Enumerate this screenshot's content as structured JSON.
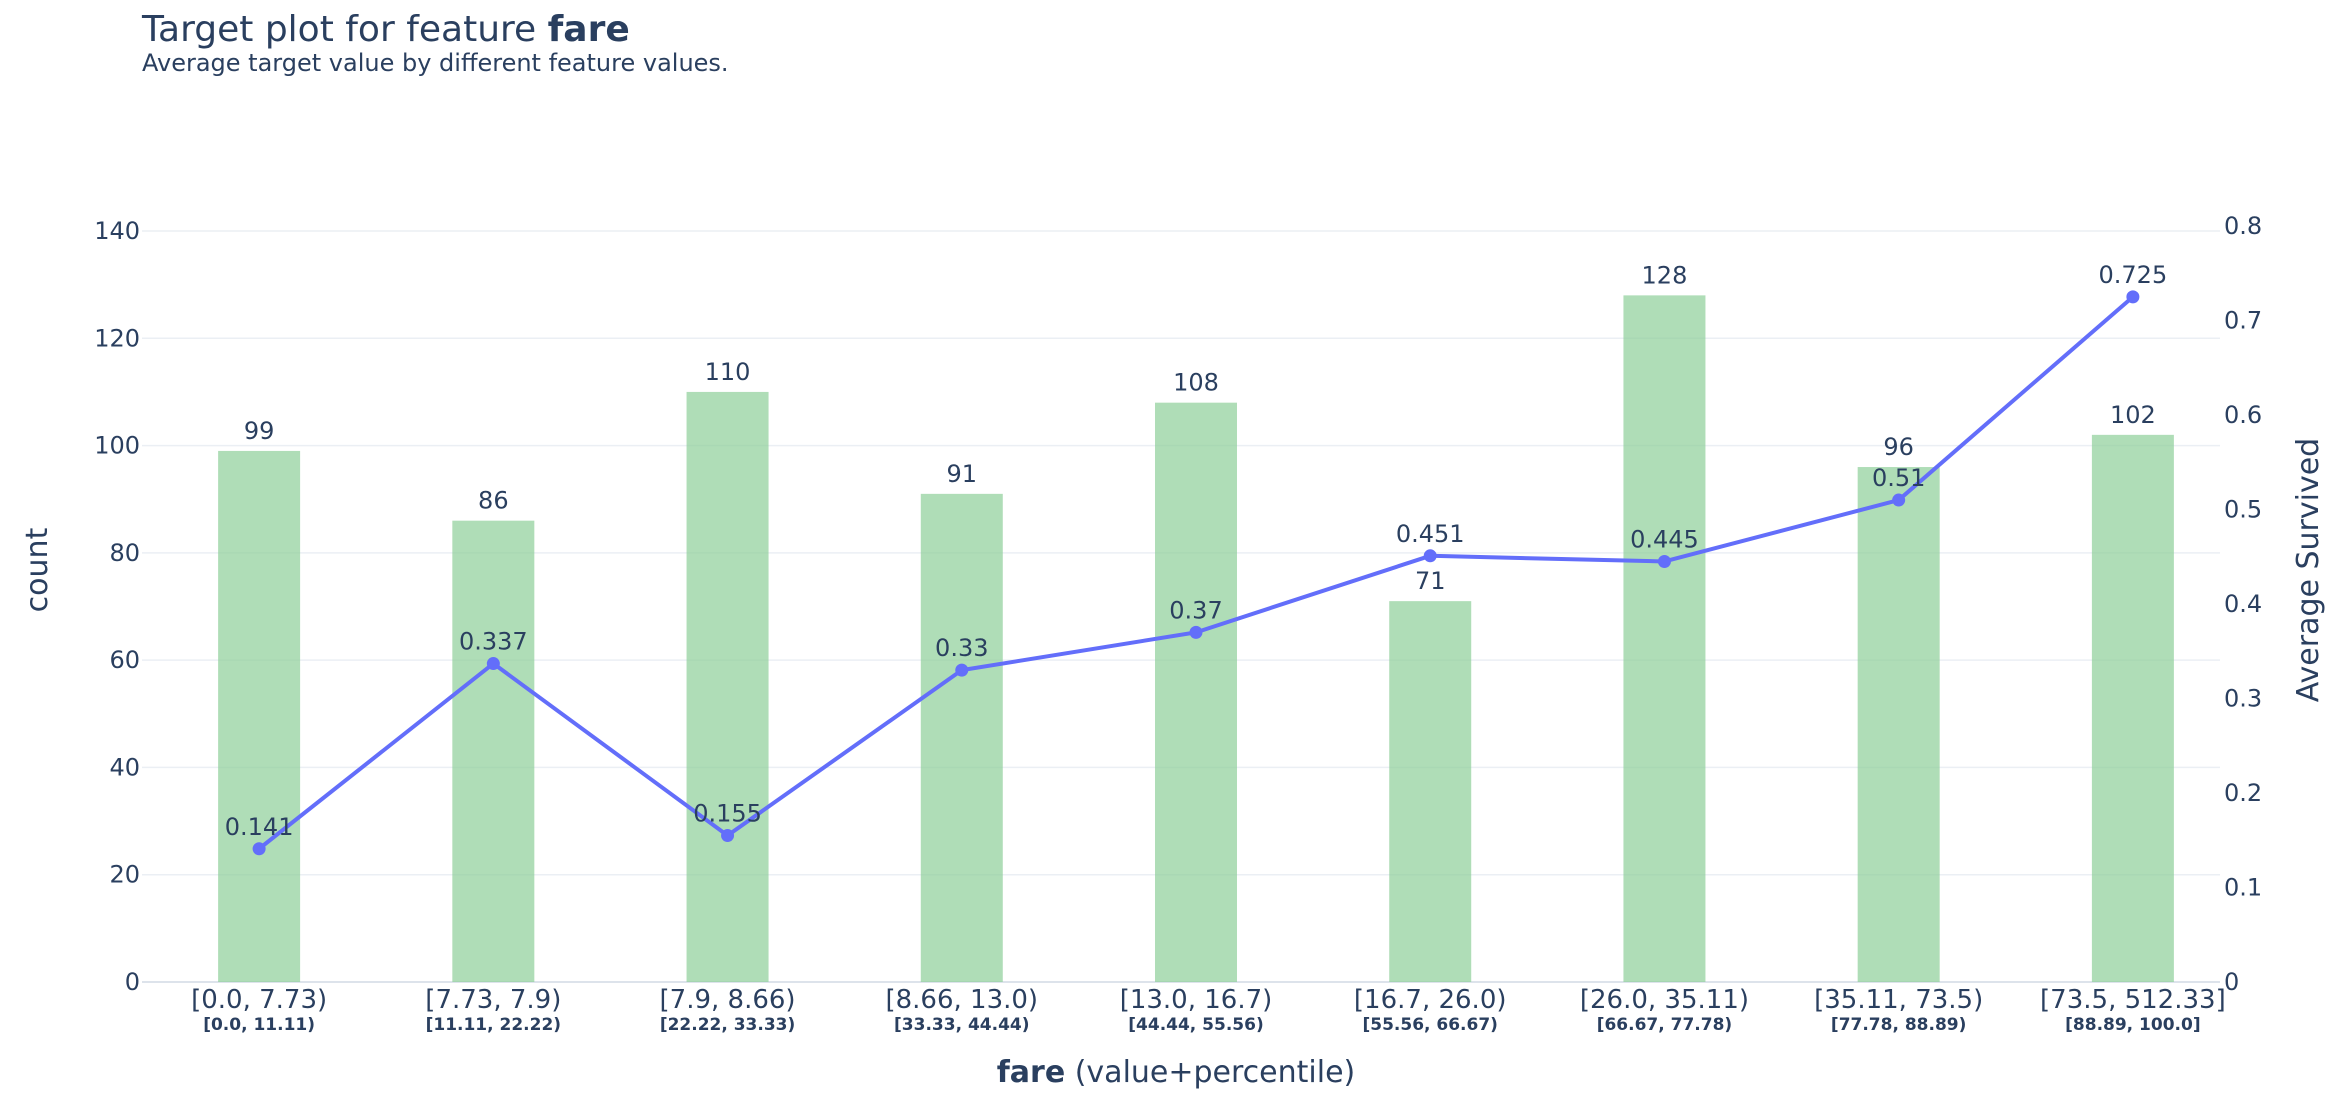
{
  "chart_data": {
    "type": "bar+line",
    "title_prefix": "Target plot for feature ",
    "title_feature": "fare",
    "subtitle": "Average target value by different feature values.",
    "categories": [
      "[0.0, 7.73)",
      "[7.73, 7.9)",
      "[7.9, 8.66)",
      "[8.66, 13.0)",
      "[13.0, 16.7)",
      "[16.7, 26.0)",
      "[26.0, 35.11)",
      "[35.11, 73.5)",
      "[73.5, 512.33]"
    ],
    "percentiles": [
      "[0.0, 11.11)",
      "[11.11, 22.22)",
      "[22.22, 33.33)",
      "[33.33, 44.44)",
      "[44.44, 55.56)",
      "[55.56, 66.67)",
      "[66.67, 77.78)",
      "[77.78, 88.89)",
      "[88.89, 100.0]"
    ],
    "series": [
      {
        "name": "count",
        "type": "bar",
        "axis": "left",
        "color": "#8dcf98",
        "values": [
          99,
          86,
          110,
          91,
          108,
          71,
          128,
          96,
          102
        ],
        "labels": [
          "99",
          "86",
          "110",
          "91",
          "108",
          "71",
          "128",
          "96",
          "102"
        ]
      },
      {
        "name": "Average Survived",
        "type": "line",
        "axis": "right",
        "color": "#636efa",
        "values": [
          0.141,
          0.337,
          0.155,
          0.33,
          0.37,
          0.451,
          0.445,
          0.51,
          0.725
        ],
        "labels": [
          "0.141",
          "0.337",
          "0.155",
          "0.33",
          "0.37",
          "0.451",
          "0.445",
          "0.51",
          "0.725"
        ]
      }
    ],
    "y_left": {
      "title": "count",
      "range": [
        0,
        140
      ],
      "ticks": [
        0,
        20,
        40,
        60,
        80,
        100,
        120,
        140
      ],
      "tick_labels": [
        "0",
        "20",
        "40",
        "60",
        "80",
        "100",
        "120",
        "140"
      ]
    },
    "y_right": {
      "title": "Average Survived",
      "range": [
        0,
        0.8
      ],
      "ticks": [
        0,
        0.1,
        0.2,
        0.3,
        0.4,
        0.5,
        0.6,
        0.7,
        0.8
      ],
      "tick_labels": [
        "0",
        "0.1",
        "0.2",
        "0.3",
        "0.4",
        "0.5",
        "0.6",
        "0.7",
        "0.8"
      ]
    },
    "x_axis": {
      "title_bold": "fare",
      "title_rest": " (value+percentile)"
    },
    "grid": true
  }
}
